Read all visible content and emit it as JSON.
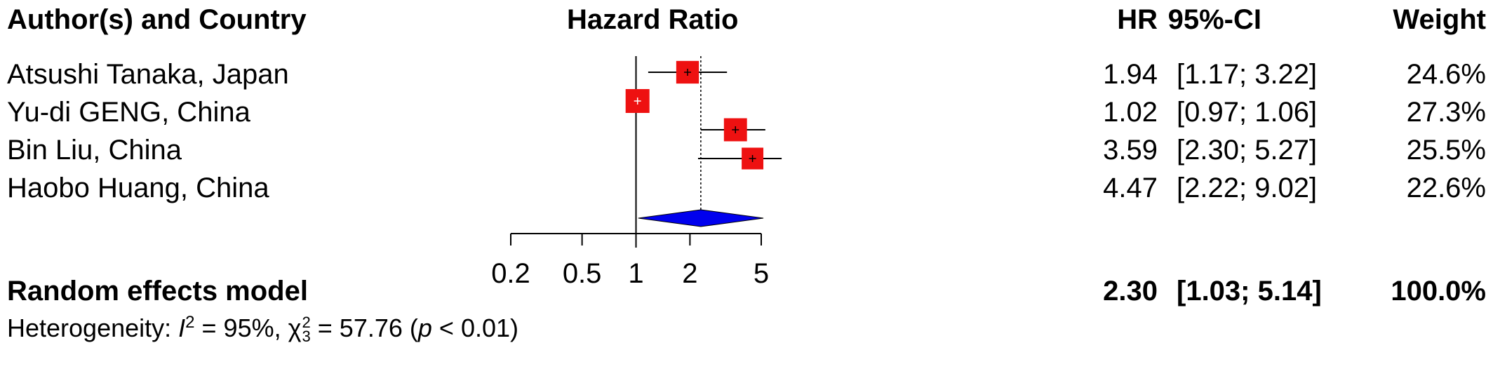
{
  "header": {
    "study_col": "Author(s) and Country",
    "plot_title": "Hazard Ratio",
    "hr_col": "HR",
    "ci_col": "95%-CI",
    "weight_col": "Weight"
  },
  "studies": [
    {
      "label": "Atsushi Tanaka,  Japan",
      "hr": "1.94",
      "ci": "[1.17; 3.22]",
      "weight": "24.6%"
    },
    {
      "label": "Yu-di GENG,  China",
      "hr": "1.02",
      "ci": "[0.97; 1.06]",
      "weight": "27.3%"
    },
    {
      "label": "Bin Liu,  China",
      "hr": "3.59",
      "ci": "[2.30; 5.27]",
      "weight": "25.5%"
    },
    {
      "label": "Haobo Huang,  China",
      "hr": "4.47",
      "ci": "[2.22; 9.02]",
      "weight": "22.6%"
    }
  ],
  "summary": {
    "label": "Random effects model",
    "hr": "2.30",
    "ci": "[1.03; 5.14]",
    "weight": "100.0%"
  },
  "heterogeneity": {
    "prefix": "Heterogeneity: ",
    "i2_symbol": "I",
    "i2_exp": "2",
    "i2_value": " = 95%, ",
    "chi": "χ",
    "chi_exp": "2",
    "chi_sub": "3",
    "chi_value": " = 57.76 (",
    "p": "p",
    "p_value": " < 0.01)"
  },
  "colors": {
    "study_box": "#ee1111",
    "summary_diamond": "#0000ee"
  },
  "chart_data": {
    "type": "forest",
    "scale": "log",
    "xlim": [
      0.2,
      5
    ],
    "xticks": [
      0.2,
      0.5,
      1,
      2,
      5
    ],
    "tick_labels": [
      "0.2",
      "0.5",
      "1",
      "2",
      "5"
    ],
    "reference_line": 1,
    "summary_line": 2.3,
    "studies": [
      {
        "label": "Atsushi Tanaka,  Japan",
        "hr": 1.94,
        "lower": 1.17,
        "upper": 3.22,
        "weight": 24.6
      },
      {
        "label": "Yu-di GENG,  China",
        "hr": 1.02,
        "lower": 0.97,
        "upper": 1.06,
        "weight": 27.3
      },
      {
        "label": "Bin Liu,  China",
        "hr": 3.59,
        "lower": 2.3,
        "upper": 5.27,
        "weight": 25.5
      },
      {
        "label": "Haobo Huang,  China",
        "hr": 4.47,
        "lower": 2.22,
        "upper": 9.02,
        "weight": 22.6
      }
    ],
    "summary": {
      "label": "Random effects model",
      "hr": 2.3,
      "lower": 1.03,
      "upper": 5.14,
      "weight": 100.0
    }
  }
}
